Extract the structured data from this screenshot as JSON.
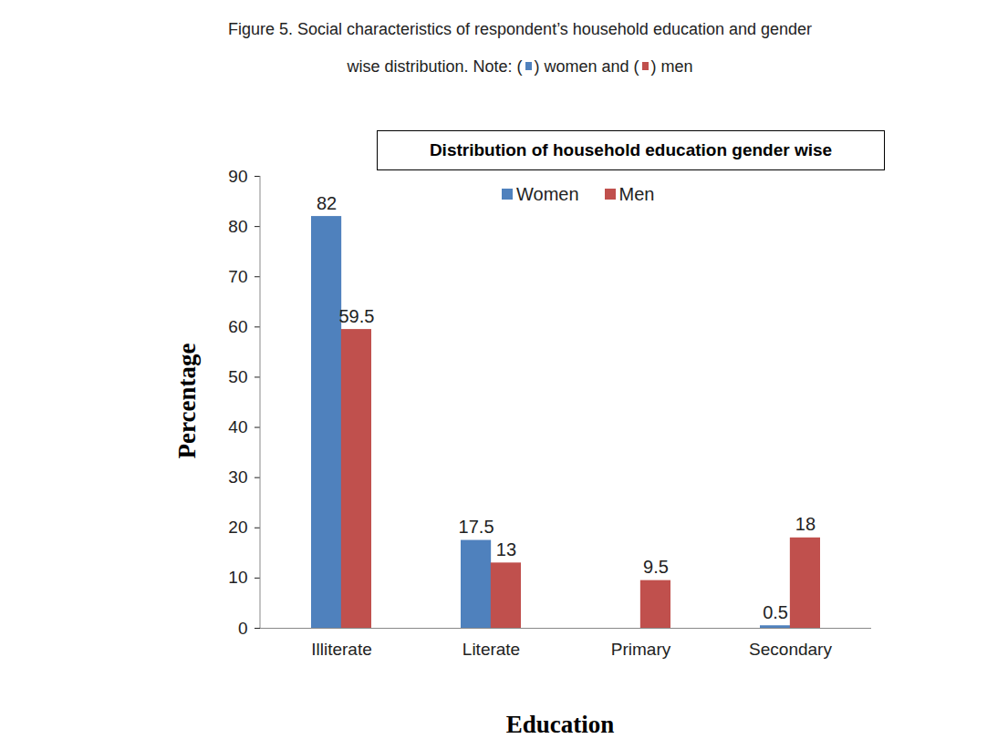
{
  "chart_data": {
    "type": "bar",
    "caption": "Figure 5. Social characteristics of respondent’s household education and gender wise distribution.",
    "caption_note": [
      "Note: (",
      ") women and (",
      ") men"
    ],
    "title": "Distribution of household education gender wise",
    "x_label": "Education",
    "y_label": "Percentage",
    "categories": [
      "Illiterate",
      "Literate",
      "Primary",
      "Secondary"
    ],
    "series": [
      {
        "name": "Women",
        "color": "#4f81bd",
        "values": [
          82,
          17.5,
          null,
          0.5
        ]
      },
      {
        "name": "Men",
        "color": "#c0504d",
        "values": [
          59.5,
          13,
          9.5,
          18
        ]
      }
    ],
    "ylim": [
      0,
      90
    ],
    "yticks": [
      0,
      10,
      20,
      30,
      40,
      50,
      60,
      70,
      80,
      90
    ],
    "data_labels": true,
    "legend": "top",
    "grid": false
  }
}
